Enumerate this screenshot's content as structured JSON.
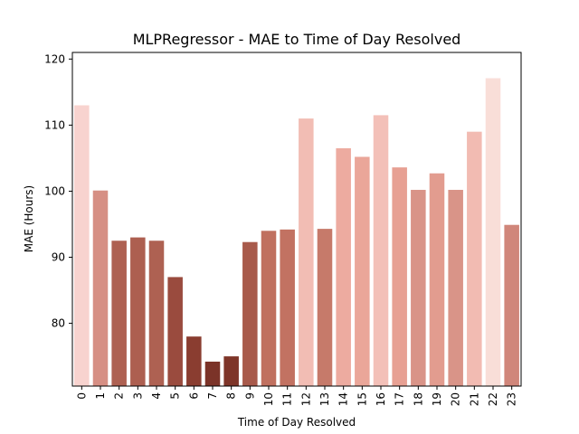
{
  "chart_data": {
    "type": "bar",
    "title": "MLPRegressor - MAE to Time of Day Resolved",
    "xlabel": "Time of Day Resolved",
    "ylabel": "MAE (Hours)",
    "ylim": [
      70.5,
      121
    ],
    "yticks": [
      80,
      90,
      100,
      110,
      120
    ],
    "grid": false,
    "categories": [
      "0",
      "1",
      "2",
      "3",
      "4",
      "5",
      "6",
      "7",
      "8",
      "9",
      "10",
      "11",
      "12",
      "13",
      "14",
      "15",
      "16",
      "17",
      "18",
      "19",
      "20",
      "21",
      "22",
      "23"
    ],
    "values": [
      113.0,
      100.1,
      92.5,
      93.0,
      92.5,
      87.0,
      78.0,
      74.2,
      75.0,
      92.3,
      94.0,
      94.2,
      111.0,
      94.3,
      106.5,
      105.2,
      111.5,
      103.6,
      100.2,
      102.7,
      100.2,
      109.0,
      117.1,
      94.9
    ],
    "colors": [
      "#f8d3cf",
      "#d68f84",
      "#ae6152",
      "#ad5f50",
      "#ae6152",
      "#9a4b3e",
      "#8a3d30",
      "#7b3328",
      "#7e3529",
      "#a85a4b",
      "#c0705f",
      "#c27262",
      "#f2bdb4",
      "#c67a6a",
      "#edaba0",
      "#eaa699",
      "#f3c0b8",
      "#e7a093",
      "#d99488",
      "#e29c8f",
      "#d99488",
      "#f2bbb2",
      "#f9ded8",
      "#d0867a"
    ]
  }
}
